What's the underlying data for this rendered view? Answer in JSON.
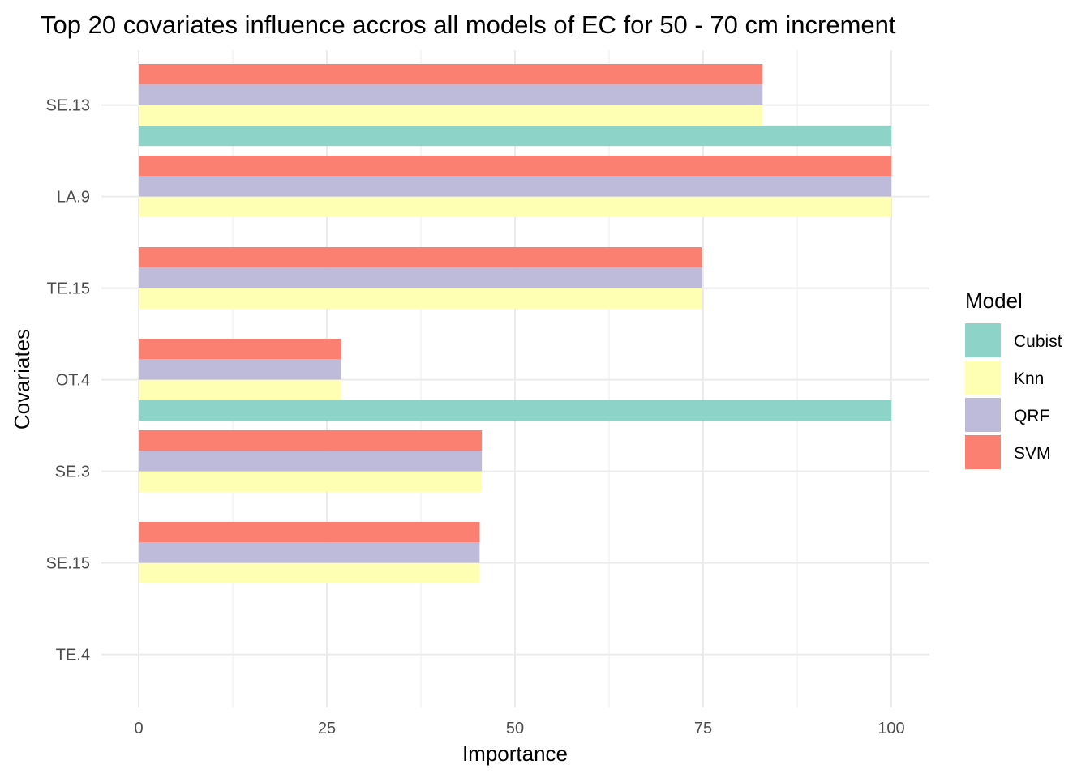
{
  "chart_data": {
    "type": "bar",
    "orientation": "horizontal",
    "title": "Top 20 covariates influence accros all models of EC for 50 - 70 cm increment",
    "xlabel": "Importance",
    "ylabel": "Covariates",
    "xlim": [
      0,
      105
    ],
    "x_ticks": [
      "0",
      "25",
      "50",
      "75",
      "100"
    ],
    "x_tick_values": [
      0,
      25,
      50,
      75,
      100
    ],
    "categories": [
      "SE.13",
      "LA.9",
      "TE.15",
      "OT.4",
      "SE.3",
      "SE.15",
      "TE.4"
    ],
    "series": [
      {
        "name": "Cubist",
        "color": "#8DD3C7",
        "values": [
          100,
          null,
          null,
          100,
          null,
          null,
          null
        ]
      },
      {
        "name": "Knn",
        "color": "#FFFFB3",
        "values": [
          82.9,
          100,
          74.8,
          26.9,
          45.6,
          45.3,
          null
        ]
      },
      {
        "name": "QRF",
        "color": "#BEBADA",
        "values": [
          82.9,
          100,
          74.8,
          26.9,
          45.6,
          45.3,
          null
        ]
      },
      {
        "name": "SVM",
        "color": "#FB8072",
        "values": [
          82.9,
          100,
          74.8,
          26.9,
          45.6,
          45.3,
          null
        ]
      }
    ],
    "legend": {
      "title": "Model",
      "position": "right"
    },
    "grid": true
  }
}
